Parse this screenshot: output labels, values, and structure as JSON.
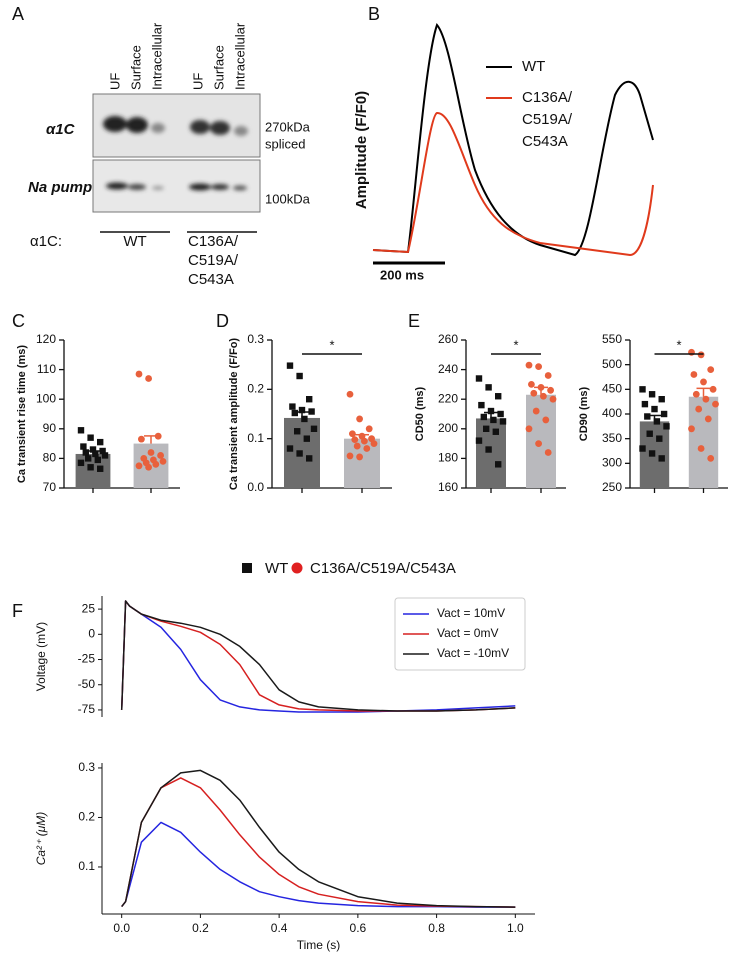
{
  "panel_labels": [
    "A",
    "B",
    "C",
    "D",
    "E",
    "F"
  ],
  "blot": {
    "lanes": [
      "UF",
      "Surface",
      "Intracellular",
      "UF",
      "Surface",
      "Intracellular"
    ],
    "rows": [
      "α1C",
      "Na pump"
    ],
    "mw": [
      "270kDa",
      "spliced",
      "100kDa"
    ],
    "construct_label": "α1C:",
    "groups": [
      [
        "WT"
      ],
      [
        "C136A/",
        "C519A/",
        "C543A"
      ]
    ]
  },
  "trace": {
    "ylabel": "Amplitude (F/F0)",
    "scale_bar": "200 ms",
    "legend": [
      {
        "name": [
          "WT"
        ],
        "color": "#000000"
      },
      {
        "name": [
          "C136A/",
          "C519A/",
          "C543A"
        ],
        "color": "#e03a1c"
      }
    ]
  },
  "legend": [
    {
      "name": "WT",
      "color": "#111111",
      "marker": "square"
    },
    {
      "name": "C136A/C519A/C543A",
      "color": "#e02020",
      "marker": "circle"
    }
  ],
  "chart_data": [
    {
      "type": "bar",
      "ylabel": "Ca transient rise time (ms)",
      "ylim": [
        70,
        120
      ],
      "yticks": [
        70,
        80,
        90,
        100,
        110,
        120
      ],
      "categories": [
        null,
        null
      ],
      "values": [
        81.5,
        85
      ],
      "errors": [
        1.0,
        2.6
      ],
      "colors": [
        "#6d6d6d",
        "#b9b9bd"
      ],
      "point_colors": [
        "#111111",
        "#e8603c"
      ],
      "point_markers": [
        "square",
        "circle"
      ],
      "points": [
        [
          89.5,
          87,
          85.5,
          84,
          83,
          82.5,
          82,
          81.5,
          81,
          80,
          79.5,
          78.5,
          77,
          76.5
        ],
        [
          108.5,
          107,
          87.5,
          86.5,
          82,
          81,
          80,
          79.5,
          79,
          78.5,
          78,
          77.5,
          77
        ]
      ]
    },
    {
      "type": "bar",
      "ylabel": "Ca transient amplitude (F/Fo)",
      "ylim": [
        0,
        0.3
      ],
      "yticks": [
        {
          "value": 0,
          "label": "0.0"
        },
        0.1,
        0.2,
        0.3
      ],
      "categories": [
        null,
        null
      ],
      "values": [
        0.142,
        0.1
      ],
      "errors": [
        0.012,
        0.008
      ],
      "colors": [
        "#6d6d6d",
        "#b9b9bd"
      ],
      "point_colors": [
        "#111111",
        "#e8603c"
      ],
      "point_markers": [
        "square",
        "circle"
      ],
      "annotation": "*",
      "points": [
        [
          0.248,
          0.227,
          0.18,
          0.165,
          0.158,
          0.155,
          0.152,
          0.14,
          0.12,
          0.115,
          0.1,
          0.08,
          0.07,
          0.06
        ],
        [
          0.19,
          0.14,
          0.12,
          0.11,
          0.105,
          0.1,
          0.098,
          0.095,
          0.09,
          0.085,
          0.08,
          0.065,
          0.063
        ]
      ]
    },
    {
      "type": "bar",
      "ylabel": "CD50 (ms)",
      "ylim": [
        160,
        260
      ],
      "yticks": [
        160,
        180,
        200,
        220,
        240,
        260
      ],
      "categories": [
        null,
        null
      ],
      "values": [
        207,
        223
      ],
      "errors": [
        4,
        5
      ],
      "colors": [
        "#6d6d6d",
        "#b9b9bd"
      ],
      "point_colors": [
        "#111111",
        "#e8603c"
      ],
      "point_markers": [
        "square",
        "circle"
      ],
      "annotation": "*",
      "points": [
        [
          234,
          228,
          222,
          216,
          212,
          210,
          208,
          206,
          205,
          200,
          198,
          192,
          186,
          176
        ],
        [
          243,
          242,
          236,
          230,
          228,
          226,
          224,
          222,
          220,
          212,
          206,
          200,
          190,
          184
        ]
      ]
    },
    {
      "type": "bar",
      "ylabel": "CD90 (ms)",
      "ylim": [
        250,
        550
      ],
      "yticks": [
        250,
        300,
        350,
        400,
        450,
        500,
        550
      ],
      "categories": [
        null,
        null
      ],
      "values": [
        385,
        435
      ],
      "errors": [
        12,
        17
      ],
      "colors": [
        "#6d6d6d",
        "#b9b9bd"
      ],
      "point_colors": [
        "#111111",
        "#e8603c"
      ],
      "point_markers": [
        "square",
        "circle"
      ],
      "annotation": "*",
      "points": [
        [
          450,
          440,
          430,
          420,
          410,
          400,
          395,
          385,
          375,
          360,
          350,
          330,
          320,
          310
        ],
        [
          525,
          520,
          490,
          480,
          465,
          450,
          440,
          430,
          420,
          410,
          390,
          370,
          330,
          310
        ]
      ]
    },
    {
      "type": "line",
      "ylabel": "Voltage (mV)",
      "xlim": [
        -0.05,
        1.05
      ],
      "ylim": [
        -82,
        38
      ],
      "yticks": [
        25,
        0,
        -25,
        -50,
        -75
      ],
      "legend": "upper right",
      "x": [
        0,
        0.01,
        0.02,
        0.05,
        0.1,
        0.15,
        0.2,
        0.25,
        0.3,
        0.35,
        0.4,
        0.45,
        0.5,
        0.6,
        0.7,
        0.8,
        0.9,
        1.0
      ],
      "series": [
        {
          "name": "Vact = 10mV",
          "color": "#2525e0",
          "values": [
            -75,
            33,
            28,
            20,
            7,
            -15,
            -45,
            -65,
            -72,
            -75,
            -76,
            -77,
            -77,
            -77,
            -76,
            -75,
            -73,
            -71
          ]
        },
        {
          "name": "Vact = 0mV",
          "color": "#d62020",
          "values": [
            -75,
            33,
            28,
            20,
            13,
            8,
            2,
            -10,
            -30,
            -60,
            -70,
            -74,
            -75,
            -76,
            -76,
            -76,
            -75,
            -73
          ]
        },
        {
          "name": "Vact = -10mV",
          "color": "#1a1a1a",
          "values": [
            -75,
            33,
            28,
            20,
            14,
            11,
            7,
            0,
            -12,
            -30,
            -55,
            -67,
            -72,
            -75,
            -76,
            -76,
            -75,
            -73
          ]
        }
      ]
    },
    {
      "type": "line",
      "ylabel": "Ca²⁺ (μM)",
      "xlabel": "Time (s)",
      "xlim": [
        -0.05,
        1.05
      ],
      "ylim": [
        0.005,
        0.31
      ],
      "xticks": [
        {
          "value": 0,
          "label": "0.0"
        },
        0.2,
        0.4,
        0.6,
        0.8,
        {
          "value": 1,
          "label": "1.0"
        }
      ],
      "yticks": [
        0.1,
        0.2,
        0.3
      ],
      "x": [
        0,
        0.01,
        0.05,
        0.1,
        0.15,
        0.2,
        0.25,
        0.3,
        0.35,
        0.4,
        0.45,
        0.5,
        0.6,
        0.7,
        0.8,
        0.9,
        1.0
      ],
      "series": [
        {
          "name": "Vact = 10mV",
          "color": "#2525e0",
          "values": [
            0.02,
            0.03,
            0.15,
            0.19,
            0.17,
            0.13,
            0.095,
            0.07,
            0.05,
            0.04,
            0.032,
            0.027,
            0.022,
            0.02,
            0.02,
            0.019,
            0.019
          ]
        },
        {
          "name": "Vact = 0mV",
          "color": "#d62020",
          "values": [
            0.02,
            0.03,
            0.19,
            0.26,
            0.28,
            0.26,
            0.215,
            0.165,
            0.12,
            0.085,
            0.06,
            0.045,
            0.03,
            0.023,
            0.021,
            0.02,
            0.019
          ]
        },
        {
          "name": "Vact = -10mV",
          "color": "#1a1a1a",
          "values": [
            0.02,
            0.03,
            0.19,
            0.26,
            0.29,
            0.295,
            0.275,
            0.235,
            0.18,
            0.13,
            0.095,
            0.07,
            0.04,
            0.027,
            0.022,
            0.02,
            0.019
          ]
        }
      ]
    }
  ]
}
